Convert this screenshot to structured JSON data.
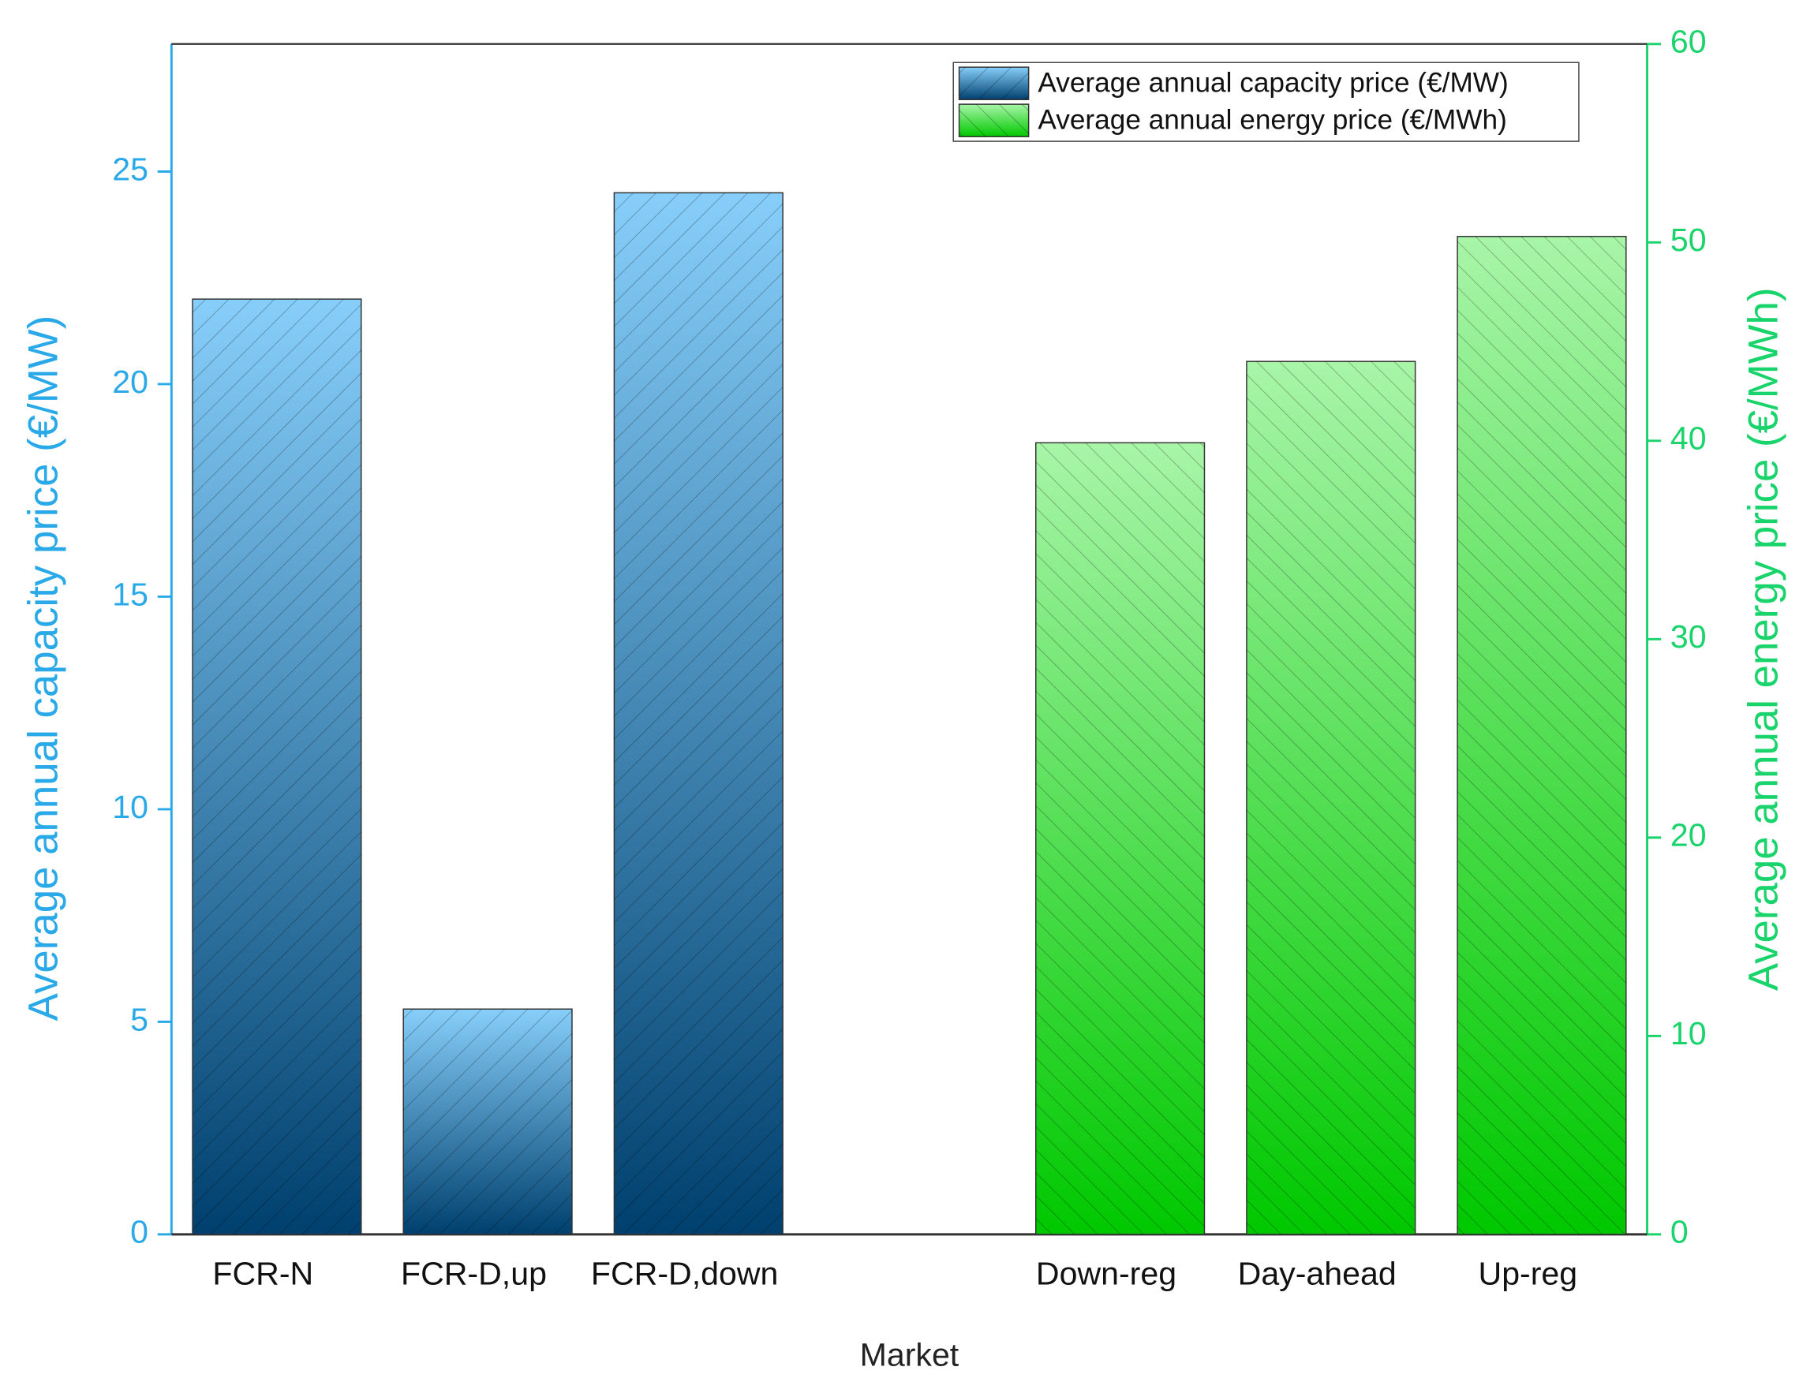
{
  "chart_data": {
    "type": "bar",
    "categories": [
      "FCR-N",
      "FCR-D,up",
      "FCR-D,down",
      null,
      "Down-reg",
      "Day-ahead",
      "Up-reg"
    ],
    "series": [
      {
        "name": "Average annual capacity price (€/MW)",
        "color": [
          "#87cefa",
          "#00406e"
        ],
        "values": [
          22,
          5.3,
          24.5,
          null,
          null,
          null,
          null
        ]
      },
      {
        "name": "Average annual energy price (€/MWh)",
        "color": [
          "#a8f5a8",
          "#00c800"
        ],
        "axis": "y2",
        "values": [
          null,
          null,
          null,
          null,
          39.9,
          44,
          50.3
        ]
      }
    ],
    "xlabel": "Market",
    "ylabel": "Average annual capacity price (€/MW)",
    "y2label": "Average annual energy price (€/MWh)",
    "ylim": [
      0,
      28
    ],
    "yticks": [
      0,
      5,
      10,
      15,
      20,
      25
    ],
    "y2lim": [
      0,
      60
    ],
    "y2ticks": [
      0,
      10,
      20,
      30,
      40,
      50,
      60
    ],
    "y_color": "#29a9e8",
    "y2_color": "#19d36b",
    "legend": "upper right"
  }
}
